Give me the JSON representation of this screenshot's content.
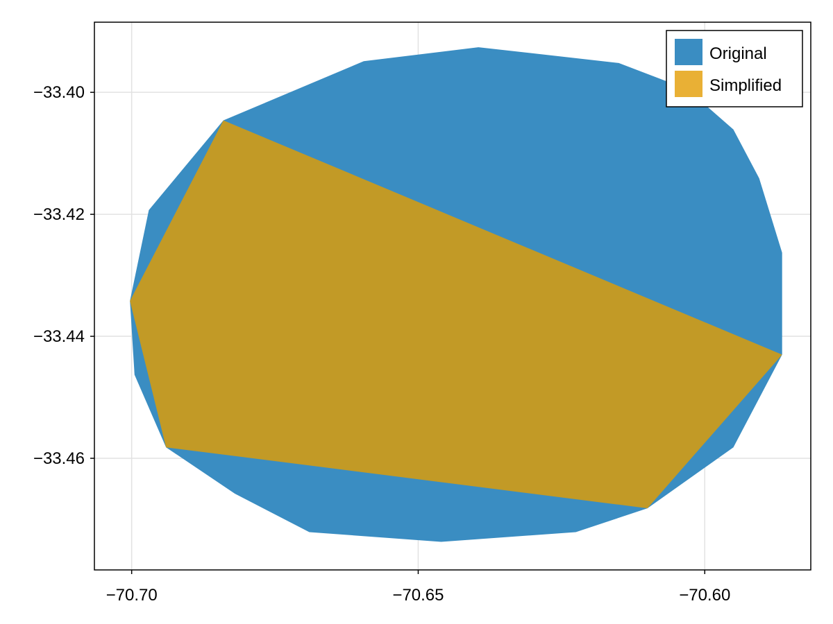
{
  "chart_data": {
    "type": "area",
    "title": "",
    "xlabel": "",
    "ylabel": "",
    "xlim": [
      -70.7065,
      -70.5815
    ],
    "ylim": [
      -33.4783,
      -33.3885
    ],
    "grid": true,
    "x_ticks": [
      -70.7,
      -70.65,
      -70.6
    ],
    "x_tick_labels": [
      "−70.70",
      "−70.65",
      "−70.60"
    ],
    "y_ticks": [
      -33.4,
      -33.42,
      -33.44,
      -33.46
    ],
    "y_tick_labels": [
      "−33.40",
      "−33.42",
      "−33.44",
      "−33.46"
    ],
    "legend_position": "top-right",
    "series": [
      {
        "name": "Original",
        "color": "#3a8dc2",
        "points": [
          [
            -70.684,
            -33.4046
          ],
          [
            -70.6595,
            -33.3949
          ],
          [
            -70.6395,
            -33.3926
          ],
          [
            -70.615,
            -33.3952
          ],
          [
            -70.603,
            -33.3995
          ],
          [
            -70.595,
            -33.4061
          ],
          [
            -70.5905,
            -33.4141
          ],
          [
            -70.5865,
            -33.4263
          ],
          [
            -70.5865,
            -33.443
          ],
          [
            -70.595,
            -33.4582
          ],
          [
            -70.61,
            -33.4682
          ],
          [
            -70.6225,
            -33.4721
          ],
          [
            -70.646,
            -33.4737
          ],
          [
            -70.669,
            -33.4721
          ],
          [
            -70.682,
            -33.4658
          ],
          [
            -70.694,
            -33.4582
          ],
          [
            -70.6995,
            -33.4463
          ],
          [
            -70.7003,
            -33.4342
          ],
          [
            -70.697,
            -33.4193
          ]
        ]
      },
      {
        "name": "Simplified",
        "color": "#c29a26",
        "points": [
          [
            -70.684,
            -33.4046
          ],
          [
            -70.5865,
            -33.443
          ],
          [
            -70.61,
            -33.4682
          ],
          [
            -70.694,
            -33.4582
          ],
          [
            -70.7003,
            -33.4342
          ]
        ]
      }
    ],
    "legend_swatch_colors": [
      "#3a8dc2",
      "#e9b035"
    ]
  }
}
